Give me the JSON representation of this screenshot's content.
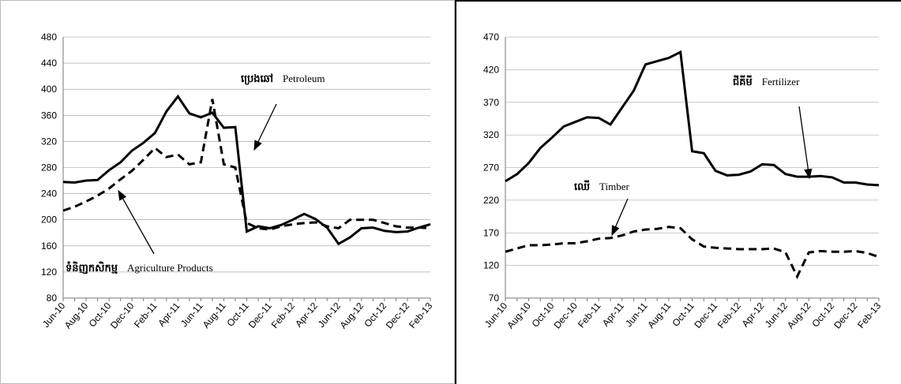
{
  "chart_data": [
    {
      "type": "line",
      "categories": [
        "Jun-10",
        null,
        "Aug-10",
        null,
        "Oct-10",
        null,
        "Dec-10",
        null,
        "Feb-11",
        null,
        "Apr-11",
        null,
        "Jun-11",
        null,
        "Aug-11",
        null,
        "Oct-11",
        null,
        "Dec-11",
        null,
        "Feb-12",
        null,
        "Apr-12",
        null,
        "Jun-12",
        null,
        "Aug-12",
        null,
        "Oct-12",
        null,
        "Dec-12",
        null,
        "Feb-13"
      ],
      "ylim": [
        80,
        480
      ],
      "yticks": [
        80,
        120,
        160,
        200,
        240,
        280,
        320,
        360,
        400,
        440,
        480
      ],
      "grid": true,
      "series": [
        {
          "name": "Petroleum",
          "label_km": "ប្រេងឆៅ",
          "color": "#000000",
          "dashed": false,
          "values": [
            258,
            257,
            260,
            261,
            276,
            288,
            306,
            318,
            333,
            366,
            389,
            363,
            357,
            364,
            341,
            342,
            182,
            190,
            187,
            192,
            200,
            209,
            201,
            188,
            163,
            173,
            187,
            188,
            183,
            181,
            182,
            188,
            193
          ]
        },
        {
          "name": "Agriculture Products",
          "label_km": "ទំនិញកសិកម្ម",
          "color": "#000000",
          "dashed": true,
          "values": [
            214,
            220,
            228,
            237,
            248,
            262,
            275,
            292,
            310,
            296,
            300,
            285,
            288,
            385,
            285,
            280,
            195,
            187,
            185,
            190,
            193,
            195,
            196,
            190,
            187,
            200,
            200,
            200,
            195,
            190,
            188,
            188,
            187
          ]
        }
      ]
    },
    {
      "type": "line",
      "categories": [
        "Jun-10",
        null,
        "Aug-10",
        null,
        "Oct-10",
        null,
        "Dec-10",
        null,
        "Feb-11",
        null,
        "Apr-11",
        null,
        "Jun-11",
        null,
        "Aug-11",
        null,
        "Oct-11",
        null,
        "Dec-11",
        null,
        "Feb-12",
        null,
        "Apr-12",
        null,
        "Jun-12",
        null,
        "Aug-12",
        null,
        "Oct-12",
        null,
        "Dec-12",
        null,
        "Feb-13"
      ],
      "ylim": [
        70,
        470
      ],
      "yticks": [
        70,
        120,
        170,
        220,
        270,
        320,
        370,
        420,
        470
      ],
      "grid": true,
      "series": [
        {
          "name": "Fertilizer",
          "label_km": "ជីគីមី",
          "color": "#000000",
          "dashed": false,
          "values": [
            249,
            260,
            277,
            300,
            316,
            333,
            340,
            347,
            346,
            336,
            362,
            388,
            428,
            433,
            438,
            447,
            295,
            292,
            265,
            258,
            259,
            264,
            275,
            274,
            260,
            256,
            256,
            257,
            255,
            247,
            247,
            244,
            243
          ]
        },
        {
          "name": "Timber",
          "label_km": "ឈើ",
          "color": "#000000",
          "dashed": true,
          "values": [
            141,
            146,
            151,
            151,
            152,
            154,
            154,
            157,
            161,
            162,
            166,
            172,
            175,
            176,
            179,
            177,
            160,
            149,
            147,
            146,
            145,
            145,
            145,
            146,
            140,
            103,
            140,
            142,
            141,
            141,
            142,
            139,
            133
          ]
        }
      ]
    }
  ]
}
